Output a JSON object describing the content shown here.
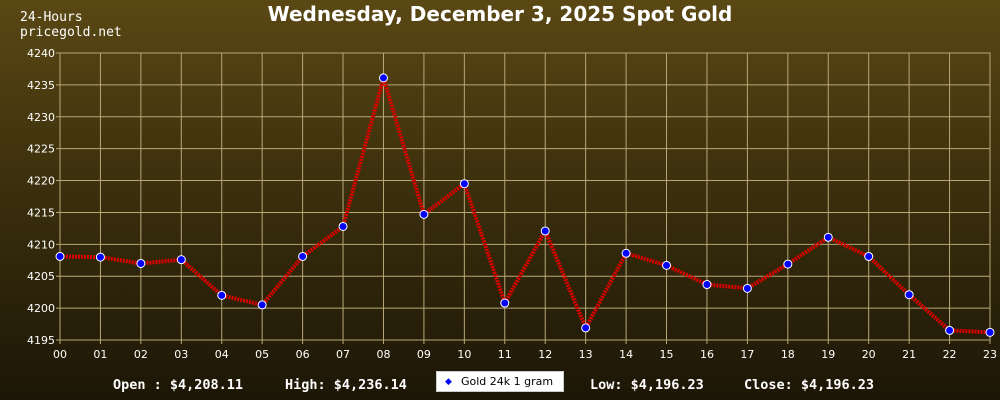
{
  "header": {
    "title": "Wednesday, December 3, 2025 Spot Gold",
    "period": "24-Hours",
    "site": "pricegold.net"
  },
  "stats": {
    "open": "Open : $4,208.11",
    "high": "High: $4,236.14",
    "low": "Low: $4,196.23",
    "close": "Close: $4,196.23"
  },
  "legend": {
    "label": "Gold 24k 1 gram"
  },
  "colors": {
    "line": "#dd0000",
    "marker": "#0000ff",
    "grid": "#b8a878",
    "axis_text": "#ffffff"
  },
  "chart_data": {
    "type": "line",
    "title": "Wednesday, December 3, 2025 Spot Gold",
    "x": [
      "00",
      "01",
      "02",
      "03",
      "04",
      "05",
      "06",
      "07",
      "08",
      "09",
      "10",
      "11",
      "12",
      "13",
      "14",
      "15",
      "16",
      "17",
      "18",
      "19",
      "20",
      "21",
      "22",
      "23"
    ],
    "series": [
      {
        "name": "Gold 24k 1 gram",
        "values": [
          4208.1,
          4208.0,
          4207.0,
          4207.6,
          4202.0,
          4200.5,
          4208.1,
          4212.8,
          4236.1,
          4214.7,
          4219.5,
          4200.8,
          4212.1,
          4196.9,
          4208.6,
          4206.7,
          4203.7,
          4203.1,
          4206.9,
          4211.1,
          4208.1,
          4202.1,
          4196.5,
          4196.2
        ]
      }
    ],
    "ylim": [
      4195,
      4240
    ],
    "yticks": [
      4195,
      4200,
      4205,
      4210,
      4215,
      4220,
      4225,
      4230,
      4235,
      4240
    ],
    "grid": true,
    "legend": "bottom-center"
  }
}
